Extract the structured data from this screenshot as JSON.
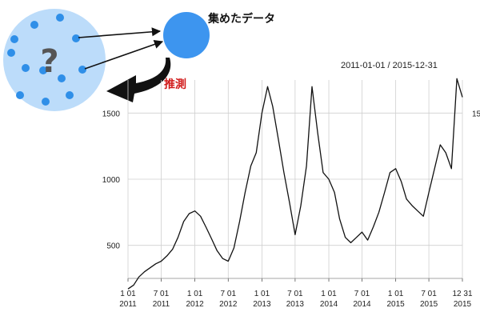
{
  "diagram": {
    "sample_caption": "集めたデータ",
    "question_mark": "?",
    "inference_label": "推測",
    "colors": {
      "population_fill": "#bcdcfa",
      "dot": "#2f8fe8",
      "sample_circle": "#3d95ef",
      "question": "#555555",
      "inference_text": "#d11a1a",
      "arrow": "#111111"
    }
  },
  "chart_data": {
    "type": "line",
    "date_range_label": "2011-01-01 / 2015-12-31",
    "y_ticks": [
      500,
      1000,
      1500
    ],
    "right_tick_labels": [
      "15"
    ],
    "ylim": [
      250,
      1750
    ],
    "grid": true,
    "x_ticks": [
      {
        "date": "2011-01-01",
        "label1": "1 01",
        "label2": "2011"
      },
      {
        "date": "2011-07-01",
        "label1": "7 01",
        "label2": "2011"
      },
      {
        "date": "2012-01-01",
        "label1": "1 01",
        "label2": "2012"
      },
      {
        "date": "2012-07-01",
        "label1": "7 01",
        "label2": "2012"
      },
      {
        "date": "2013-01-01",
        "label1": "1 01",
        "label2": "2013"
      },
      {
        "date": "2013-07-01",
        "label1": "7 01",
        "label2": "2013"
      },
      {
        "date": "2014-01-01",
        "label1": "1 01",
        "label2": "2014"
      },
      {
        "date": "2014-07-01",
        "label1": "7 01",
        "label2": "2014"
      },
      {
        "date": "2015-01-01",
        "label1": "1 01",
        "label2": "2015"
      },
      {
        "date": "2015-07-01",
        "label1": "7 01",
        "label2": "2015"
      },
      {
        "date": "2015-12-31",
        "label1": "12 31",
        "label2": "2015"
      }
    ],
    "series": [
      {
        "color": "#111111",
        "points": [
          [
            "2011-01-01",
            170
          ],
          [
            "2011-02-01",
            200
          ],
          [
            "2011-03-01",
            260
          ],
          [
            "2011-04-01",
            300
          ],
          [
            "2011-05-01",
            330
          ],
          [
            "2011-06-01",
            360
          ],
          [
            "2011-07-01",
            380
          ],
          [
            "2011-08-01",
            420
          ],
          [
            "2011-09-01",
            470
          ],
          [
            "2011-10-01",
            560
          ],
          [
            "2011-11-01",
            680
          ],
          [
            "2011-12-01",
            740
          ],
          [
            "2012-01-01",
            760
          ],
          [
            "2012-02-01",
            720
          ],
          [
            "2012-03-01",
            640
          ],
          [
            "2012-04-01",
            550
          ],
          [
            "2012-05-01",
            460
          ],
          [
            "2012-06-01",
            400
          ],
          [
            "2012-07-01",
            380
          ],
          [
            "2012-08-01",
            480
          ],
          [
            "2012-09-01",
            680
          ],
          [
            "2012-10-01",
            900
          ],
          [
            "2012-11-01",
            1100
          ],
          [
            "2012-12-01",
            1200
          ],
          [
            "2013-01-01",
            1500
          ],
          [
            "2013-02-01",
            1700
          ],
          [
            "2013-03-01",
            1550
          ],
          [
            "2013-04-01",
            1300
          ],
          [
            "2013-05-01",
            1050
          ],
          [
            "2013-06-01",
            820
          ],
          [
            "2013-07-01",
            580
          ],
          [
            "2013-08-01",
            800
          ],
          [
            "2013-09-01",
            1100
          ],
          [
            "2013-10-01",
            1700
          ],
          [
            "2013-11-01",
            1350
          ],
          [
            "2013-12-01",
            1050
          ],
          [
            "2014-01-01",
            1000
          ],
          [
            "2014-02-01",
            900
          ],
          [
            "2014-03-01",
            700
          ],
          [
            "2014-04-01",
            560
          ],
          [
            "2014-05-01",
            520
          ],
          [
            "2014-06-01",
            560
          ],
          [
            "2014-07-01",
            600
          ],
          [
            "2014-08-01",
            540
          ],
          [
            "2014-09-01",
            640
          ],
          [
            "2014-10-01",
            750
          ],
          [
            "2014-11-01",
            900
          ],
          [
            "2014-12-01",
            1050
          ],
          [
            "2015-01-01",
            1080
          ],
          [
            "2015-02-01",
            980
          ],
          [
            "2015-03-01",
            850
          ],
          [
            "2015-04-01",
            800
          ],
          [
            "2015-05-01",
            760
          ],
          [
            "2015-06-01",
            720
          ],
          [
            "2015-07-01",
            900
          ],
          [
            "2015-08-01",
            1080
          ],
          [
            "2015-09-01",
            1260
          ],
          [
            "2015-10-01",
            1200
          ],
          [
            "2015-11-01",
            1080
          ],
          [
            "2015-12-01",
            1760
          ],
          [
            "2015-12-31",
            1620
          ]
        ]
      }
    ]
  }
}
